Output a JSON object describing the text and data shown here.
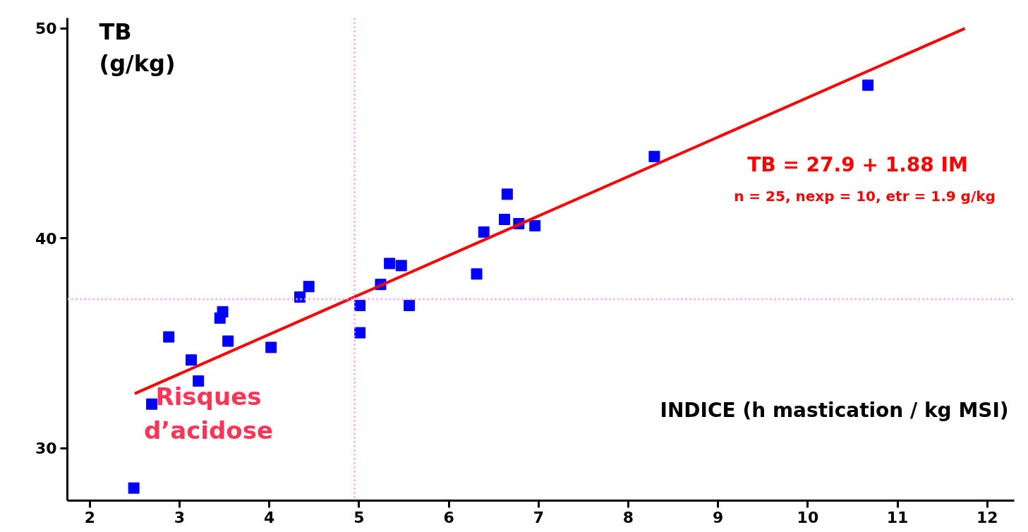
{
  "chart_data": {
    "type": "scatter",
    "xlabel": "INDICE (h mastication / kg MSI)",
    "ylabel": "TB\n(g/kg)",
    "xlim": [
      1.75,
      12.3
    ],
    "ylim": [
      27.5,
      50.5
    ],
    "xticks": [
      2,
      3,
      4,
      5,
      6,
      7,
      8,
      9,
      10,
      11,
      12
    ],
    "yticks": [
      30,
      40,
      50
    ],
    "marker": "square",
    "series": [
      {
        "color": "#0000ff",
        "x": [
          2.49,
          2.69,
          2.88,
          3.13,
          3.21,
          3.45,
          3.48,
          3.54,
          4.02,
          4.34,
          4.44,
          5.01,
          5.01,
          5.24,
          5.34,
          5.47,
          5.56,
          6.31,
          6.39,
          6.62,
          6.65,
          6.78,
          6.96,
          8.29,
          10.67
        ],
        "values": [
          28.1,
          32.1,
          35.3,
          34.2,
          33.2,
          36.2,
          36.5,
          35.1,
          34.8,
          37.2,
          37.7,
          36.8,
          35.5,
          37.8,
          38.8,
          38.7,
          36.8,
          38.3,
          40.3,
          40.9,
          42.1,
          40.7,
          40.6,
          43.9,
          47.3
        ]
      },
      {
        "type": "line",
        "marker": "none",
        "color": "#ff0000",
        "x": [
          2.5,
          11.75
        ],
        "values": [
          32.6,
          50.0
        ]
      }
    ],
    "ref_lines": [
      {
        "axis": "x",
        "value": 4.95,
        "label": null,
        "color": "#ff99ff",
        "line_style": "dotted"
      },
      {
        "axis": "y",
        "value": 37.1,
        "label": null,
        "color": "#ff99ff",
        "line_style": "dotted"
      }
    ],
    "annotations": [
      "TB = 27.9 + 1.88 IM",
      "n = 25, nexp = 10, etr = 1.9 g/kg",
      "Risques\nd’acidose"
    ],
    "grid": false
  }
}
